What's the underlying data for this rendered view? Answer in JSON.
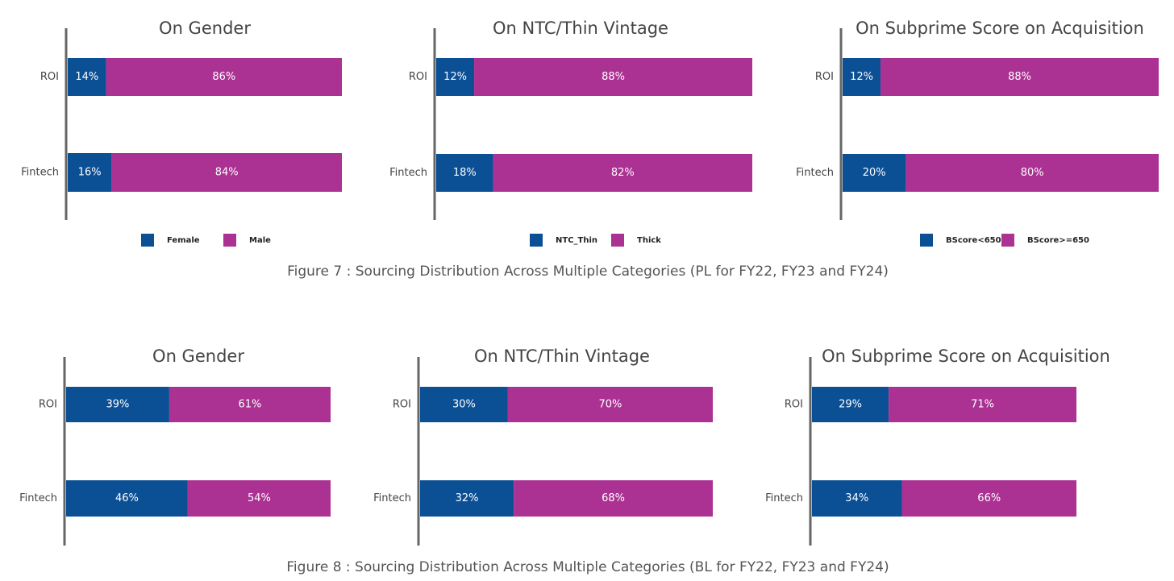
{
  "chart_data": [
    {
      "type": "bar",
      "orientation": "horizontal",
      "stacked": true,
      "title": "On Gender",
      "categories": [
        "ROI",
        "Fintech"
      ],
      "xlim": [
        0,
        100
      ],
      "legend": "bottom",
      "series": [
        {
          "name": "Female",
          "color": "#0b4f95",
          "values": [
            14,
            16
          ],
          "value_labels": [
            "14%",
            "16%"
          ]
        },
        {
          "name": "Male",
          "color": "#ab3193",
          "values": [
            86,
            84
          ],
          "value_labels": [
            "86%",
            "84%"
          ]
        }
      ]
    },
    {
      "type": "bar",
      "orientation": "horizontal",
      "stacked": true,
      "title": "On NTC/Thin Vintage",
      "categories": [
        "ROI",
        "Fintech"
      ],
      "xlim": [
        0,
        100
      ],
      "legend": "bottom",
      "series": [
        {
          "name": "NTC_Thin",
          "color": "#0b4f95",
          "values": [
            12,
            18
          ],
          "value_labels": [
            "12%",
            "18%"
          ]
        },
        {
          "name": "Thick",
          "color": "#ab3193",
          "values": [
            88,
            82
          ],
          "value_labels": [
            "88%",
            "82%"
          ]
        }
      ]
    },
    {
      "type": "bar",
      "orientation": "horizontal",
      "stacked": true,
      "title": "On Subprime Score on Acquisition",
      "categories": [
        "ROI",
        "Fintech"
      ],
      "xlim": [
        0,
        100
      ],
      "legend": "bottom",
      "series": [
        {
          "name": "BScore<650",
          "color": "#0b4f95",
          "values": [
            12,
            20
          ],
          "value_labels": [
            "12%",
            "20%"
          ]
        },
        {
          "name": "BScore>=650",
          "color": "#ab3193",
          "values": [
            88,
            80
          ],
          "value_labels": [
            "88%",
            "80%"
          ]
        }
      ]
    },
    {
      "type": "bar",
      "orientation": "horizontal",
      "stacked": true,
      "title": "On Gender",
      "categories": [
        "ROI",
        "Fintech"
      ],
      "xlim": [
        0,
        100
      ],
      "series": [
        {
          "color": "#0b4f95",
          "values": [
            39,
            46
          ],
          "value_labels": [
            "39%",
            "46%"
          ]
        },
        {
          "color": "#ab3193",
          "values": [
            61,
            54
          ],
          "value_labels": [
            "61%",
            "54%"
          ]
        }
      ]
    },
    {
      "type": "bar",
      "orientation": "horizontal",
      "stacked": true,
      "title": "On NTC/Thin Vintage",
      "categories": [
        "ROI",
        "Fintech"
      ],
      "xlim": [
        0,
        100
      ],
      "series": [
        {
          "color": "#0b4f95",
          "values": [
            30,
            32
          ],
          "value_labels": [
            "30%",
            "32%"
          ]
        },
        {
          "color": "#ab3193",
          "values": [
            70,
            68
          ],
          "value_labels": [
            "70%",
            "68%"
          ]
        }
      ]
    },
    {
      "type": "bar",
      "orientation": "horizontal",
      "stacked": true,
      "title": "On Subprime Score on Acquisition",
      "categories": [
        "ROI",
        "Fintech"
      ],
      "xlim": [
        0,
        100
      ],
      "series": [
        {
          "color": "#0b4f95",
          "values": [
            29,
            34
          ],
          "value_labels": [
            "29%",
            "34%"
          ]
        },
        {
          "color": "#ab3193",
          "values": [
            71,
            66
          ],
          "value_labels": [
            "71%",
            "66%"
          ]
        }
      ]
    }
  ],
  "captions": [
    "Figure 7 : Sourcing Distribution Across Multiple Categories (PL for FY22, FY23 and FY24)",
    "Figure 8 : Sourcing Distribution Across Multiple Categories (BL for FY22, FY23 and FY24)"
  ]
}
